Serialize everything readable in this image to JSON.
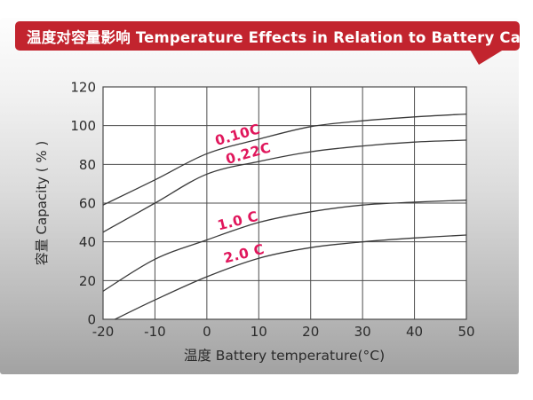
{
  "banner": {
    "title": "温度对容量影响 Temperature Effects in Relation to Battery Capacity",
    "color": "#c2242e",
    "text_color": "#ffffff"
  },
  "chart_data": {
    "type": "line",
    "title": "",
    "xlabel": "温度 Battery temperature(°C)",
    "ylabel": "容量 Capacity ( % )",
    "xlim": [
      -20,
      50
    ],
    "ylim": [
      0,
      120
    ],
    "x_ticks": [
      -20,
      -10,
      0,
      10,
      20,
      30,
      40,
      50
    ],
    "y_ticks": [
      120,
      100,
      80,
      60,
      40,
      20,
      0
    ],
    "grid": true,
    "legend_position": "inline-labels",
    "grid_color": "#4d4d4d",
    "line_color": "#3a3a3a",
    "label_color": "#e0175c",
    "tick_color": "#2b2b2b",
    "plot_bg": "#ffffff",
    "series": [
      {
        "name": "0.10C",
        "x": [
          -20,
          -10,
          0,
          10,
          20,
          30,
          40,
          50
        ],
        "values": [
          59,
          72,
          85.5,
          93,
          99.5,
          102.5,
          104.5,
          106
        ]
      },
      {
        "name": "0.22C",
        "x": [
          -20,
          -10,
          0,
          10,
          20,
          30,
          40,
          50
        ],
        "values": [
          45,
          60,
          75,
          81.5,
          86.5,
          89.5,
          91.5,
          92.5
        ]
      },
      {
        "name": "1.0 C",
        "x": [
          -20,
          -10,
          0,
          10,
          20,
          30,
          40,
          50
        ],
        "values": [
          14.5,
          31,
          41,
          50,
          55.5,
          59,
          60.5,
          61.5
        ]
      },
      {
        "name": "2.0 C",
        "x": [
          -17.7,
          -10,
          0,
          10,
          20,
          30,
          40,
          50
        ],
        "values": [
          0,
          10,
          22,
          31.5,
          37,
          40,
          42,
          43.5
        ]
      }
    ]
  }
}
